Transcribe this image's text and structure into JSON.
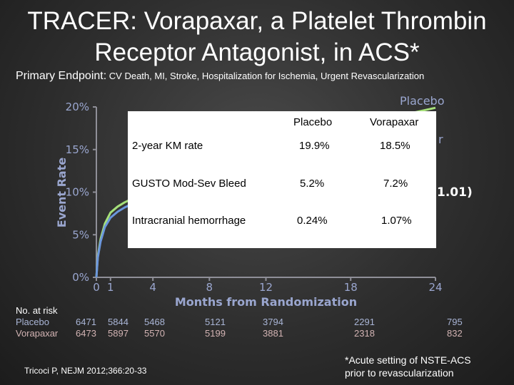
{
  "title_line1": "TRACER: Vorapaxar, a Platelet Thrombin",
  "title_line2": "Receptor Antagonist, in ACS*",
  "subtitle_label": "Primary Endpoint:",
  "subtitle_text": " CV Death, MI, Stroke, Hospitalization for Ischemia, Urgent Revascularization",
  "chart_data": {
    "type": "line",
    "ylabel": "Event Rate",
    "xlabel": "Months from Randomization",
    "ylim": [
      0,
      20
    ],
    "xlim": [
      0,
      24
    ],
    "y_ticks": [
      "0%",
      "5%",
      "10%",
      "15%",
      "20%"
    ],
    "x_ticks": [
      "0",
      "1",
      "4",
      "8",
      "12",
      "18",
      "24"
    ],
    "legend_placebo": "Placebo",
    "legend_vorapaxar_partial": "r",
    "hr_partial": "1.01)",
    "series": [
      {
        "name": "Placebo",
        "color": "#a6e07a",
        "x": [
          0,
          0.1,
          0.3,
          0.6,
          1,
          1.5,
          2,
          3,
          4,
          6,
          8,
          10,
          12,
          15,
          18,
          21,
          24
        ],
        "y": [
          0,
          2.5,
          4.5,
          6.3,
          7.6,
          8.3,
          8.8,
          9.6,
          10.3,
          11.6,
          12.9,
          14.1,
          15.2,
          16.5,
          17.6,
          18.8,
          19.9
        ]
      },
      {
        "name": "Vorapaxar",
        "color": "#6b96dc",
        "x": [
          0,
          0.1,
          0.3,
          0.6,
          1,
          1.5,
          2,
          3,
          4,
          6,
          8,
          10,
          12,
          15,
          18,
          21,
          24
        ],
        "y": [
          0,
          2.3,
          4.2,
          5.9,
          7.0,
          7.7,
          8.2,
          9.0,
          9.7,
          10.9,
          12.1,
          13.2,
          14.2,
          15.4,
          16.4,
          17.5,
          18.5
        ]
      }
    ]
  },
  "table": {
    "headers": [
      "",
      "Placebo",
      "Vorapaxar"
    ],
    "rows": [
      [
        "2-year KM rate",
        "19.9%",
        "18.5%"
      ],
      [
        "GUSTO Mod-Sev Bleed",
        "5.2%",
        "7.2%"
      ],
      [
        "Intracranial hemorrhage",
        "0.24%",
        "1.07%"
      ]
    ]
  },
  "at_risk": {
    "header": "No. at risk",
    "placebo_label": "Placebo",
    "vorapaxar_label": "Vorapaxar",
    "placebo": [
      "6471",
      "5844",
      "5468",
      "5121",
      "3794",
      "2291",
      "795"
    ],
    "vorapaxar": [
      "6473",
      "5897",
      "5570",
      "5199",
      "3881",
      "2318",
      "832"
    ]
  },
  "citation": "Tricoci P, NEJM 2012;366:20-33",
  "footnote_line1": "*Acute setting of NSTE-ACS",
  "footnote_line2": "prior to revascularization"
}
